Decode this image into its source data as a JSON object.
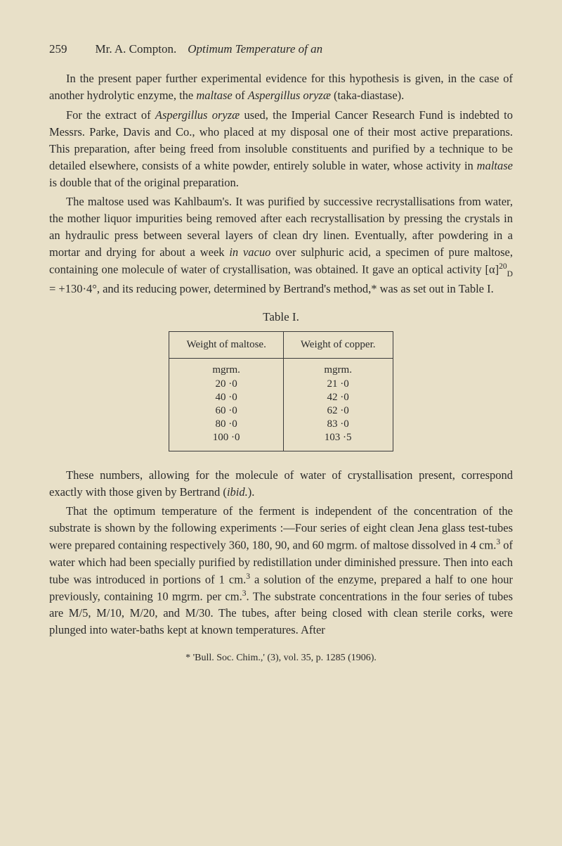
{
  "header": {
    "pageNumber": "259",
    "author": "Mr. A. Compton.",
    "title": "Optimum Temperature of an"
  },
  "paragraphs": {
    "p1": "In the present paper further experimental evidence for this hypothesis is given, in the case of another hydrolytic enzyme, the ",
    "p1_italic1": "maltase",
    "p1_mid": " of ",
    "p1_italic2": "Aspergillus oryzæ",
    "p1_end": " (taka-diastase).",
    "p2_start": "For the extract of ",
    "p2_italic1": "Aspergillus oryzæ",
    "p2_mid": " used, the Imperial Cancer Research Fund is indebted to Messrs. Parke, Davis and Co., who placed at my disposal one of their most active preparations. This preparation, after being freed from insoluble constituents and purified by a technique to be detailed elsewhere, consists of a white powder, entirely soluble in water, whose activity in ",
    "p2_italic2": "maltase",
    "p2_end": " is double that of the original preparation.",
    "p3_start": "The maltose used was Kahlbaum's. It was purified by successive recrystallisations from water, the mother liquor impurities being removed after each recrystallisation by pressing the crystals in an hydraulic press between several layers of clean dry linen. Eventually, after powdering in a mortar and drying for about a week ",
    "p3_italic1": "in vacuo",
    "p3_mid": " over sulphuric acid, a specimen of pure maltose, containing one molecule of water of crystallisation, was obtained. It gave an optical activity [α]",
    "p3_formula": " = +130·4°, and its reducing power, determined by Bertrand's method,* was as set out in Table I.",
    "p4_start": "These numbers, allowing for the molecule of water of crystallisation present, correspond exactly with those given by Bertrand (",
    "p4_italic1": "ibid.",
    "p4_end": ").",
    "p5_start": "That the optimum temperature of the ferment is independent of the concentration of the substrate is shown by the following experiments :—Four series of eight clean Jena glass test-tubes were prepared containing respectively 360, 180, 90, and 60 mgrm. of maltose dissolved in 4 cm.",
    "p5_sup1": "3",
    "p5_mid1": " of water which had been specially purified by redistillation under diminished pressure. Then into each tube was introduced in portions of 1 cm.",
    "p5_sup2": "3",
    "p5_mid2": " a solution of the enzyme, prepared a half to one hour previously, containing 10 mgrm. per cm.",
    "p5_sup3": "3",
    "p5_end": ". The substrate concentrations in the four series of tubes are M/5, M/10, M/20, and M/30. The tubes, after being closed with clean sterile corks, were plunged into water-baths kept at known temperatures. After"
  },
  "table": {
    "label": "Table I.",
    "headers": {
      "col1": "Weight of maltose.",
      "col2": "Weight of copper."
    },
    "units": {
      "col1": "mgrm.",
      "col2": "mgrm."
    },
    "rows": [
      {
        "col1": "20 ·0",
        "col2": "21 ·0"
      },
      {
        "col1": "40 ·0",
        "col2": "42 ·0"
      },
      {
        "col1": "60 ·0",
        "col2": "62 ·0"
      },
      {
        "col1": "80 ·0",
        "col2": "83 ·0"
      },
      {
        "col1": "100 ·0",
        "col2": "103 ·5"
      }
    ]
  },
  "footnote": "* 'Bull. Soc. Chim.,' (3), vol. 35, p. 1285 (1906).",
  "styling": {
    "backgroundColor": "#e8e0c8",
    "textColor": "#2a2a2a",
    "tableBorderColor": "#3a3a3a",
    "bodyFont": "Georgia, Times New Roman, serif",
    "bodyFontSize": 16.5,
    "headerFontSize": 17,
    "tableFontSize": 15,
    "footnoteFontSize": 14,
    "lineHeight": 1.45,
    "pageWidth": 800,
    "pageHeight": 1203
  }
}
